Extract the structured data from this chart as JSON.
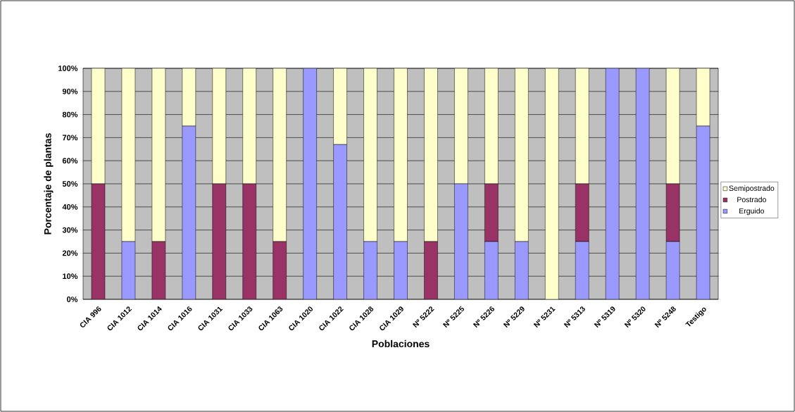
{
  "chart_data": {
    "type": "bar",
    "stacked": true,
    "xlabel": "Poblaciones",
    "ylabel": "Porcentaje de plantas",
    "categories": [
      "CIA 996",
      "CIA 1012",
      "CIA 1014",
      "CIA 1016",
      "CIA 1031",
      "CIA 1033",
      "CIA 1063",
      "CIA 1020",
      "CIA 1022",
      "CIA 1028",
      "CIA 1029",
      "Nº 5222",
      "Nº 5225",
      "Nº 5226",
      "Nº 5229",
      "Nº 5231",
      "Nº 5313",
      "Nº 5319",
      "Nº 5320",
      "Nº 5248",
      "Testigo"
    ],
    "series": [
      {
        "name": "Erguido",
        "color": "#9999ff",
        "values": [
          0,
          25,
          0,
          75,
          0,
          0,
          0,
          100,
          67,
          25,
          25,
          0,
          50,
          25,
          25,
          0,
          25,
          100,
          100,
          25,
          75
        ]
      },
      {
        "name": "Postrado",
        "color": "#993366",
        "values": [
          50,
          0,
          25,
          0,
          50,
          50,
          25,
          0,
          0,
          0,
          0,
          25,
          0,
          25,
          0,
          0,
          25,
          0,
          0,
          25,
          0
        ]
      },
      {
        "name": "Semipostrado",
        "color": "#ffffcc",
        "values": [
          50,
          75,
          75,
          25,
          50,
          50,
          75,
          0,
          33,
          75,
          75,
          75,
          50,
          50,
          75,
          100,
          50,
          0,
          0,
          50,
          25
        ]
      }
    ],
    "ylim": [
      0,
      100
    ],
    "yticks": [
      {
        "value": 0,
        "label": "0%"
      },
      {
        "value": 10,
        "label": "10%"
      },
      {
        "value": 20,
        "label": "20%"
      },
      {
        "value": 30,
        "label": "30%"
      },
      {
        "value": 40,
        "label": "40%"
      },
      {
        "value": 50,
        "label": "50%"
      },
      {
        "value": 60,
        "label": "60%"
      },
      {
        "value": 70,
        "label": "70%"
      },
      {
        "value": 80,
        "label": "80%"
      },
      {
        "value": 90,
        "label": "90%"
      },
      {
        "value": 100,
        "label": "100%"
      }
    ],
    "grid": "y",
    "legend": "right"
  }
}
